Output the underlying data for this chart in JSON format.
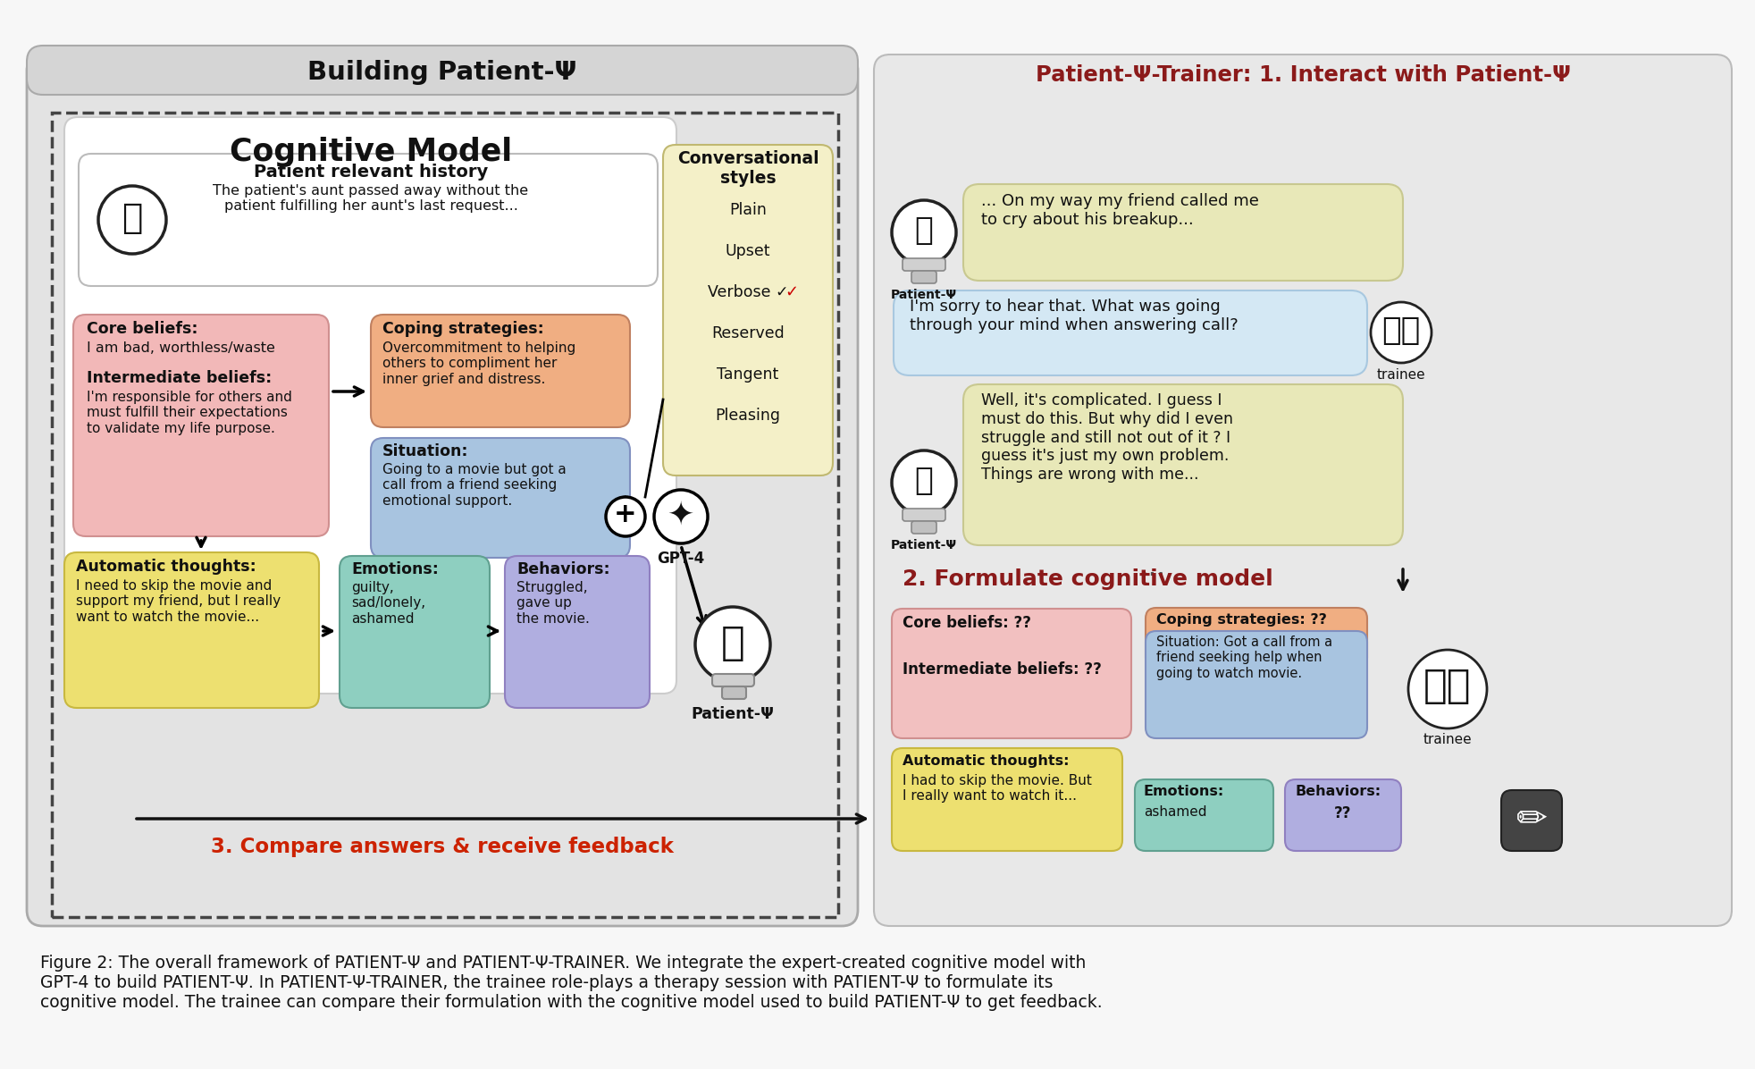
{
  "bg": "#f7f7f7",
  "left_panel_fc": "#e3e3e3",
  "right_panel_fc": "#e8e8e8",
  "left_title": "Building Patient-Ψ",
  "right_title": "Patient-Ψ-Trainer: 1. Interact with Patient-Ψ",
  "cog_model_title": "Cognitive Model",
  "hist_title": "Patient relevant history",
  "hist_body": "The patient's aunt passed away without the\npatient fulfilling her aunt's last request...",
  "core_title": "Core beliefs:",
  "core_body": "I am bad, worthless/waste",
  "inter_title": "Intermediate beliefs:",
  "inter_body": "I'm responsible for others and\nmust fulfill their expectations\nto validate my life purpose.",
  "coping_title": "Coping strategies:",
  "coping_body": "Overcommitment to helping\nothers to compliment her\ninner grief and distress.",
  "sit_title": "Situation:",
  "sit_body": "Going to a movie but got a\ncall from a friend seeking\nemotional support.",
  "at_title": "Automatic thoughts:",
  "at_body": "I need to skip the movie and\nsupport my friend, but I really\nwant to watch the movie...",
  "emo_title": "Emotions:",
  "emo_body": "guilty,\nsad/lonely,\nashamed",
  "beh_title": "Behaviors:",
  "beh_body": "Struggled,\ngave up\nthe movie.",
  "conv_title": "Conversational\nstyles",
  "conv_items": [
    "Plain",
    "Upset",
    "Verbose ✓",
    "Reserved",
    "Tangent",
    "Pleasing"
  ],
  "chat_p1": "... On my way my friend called me\nto cry about his breakup...",
  "chat_t1": "I'm sorry to hear that. What was going\nthrough your mind when answering call?",
  "chat_p2": "Well, it's complicated. I guess I\nmust do this. But why did I even\nstruggle and still not out of it ? I\nguess it's just my own problem.\nThings are wrong with me...",
  "s2_title": "2. Formulate cognitive model",
  "s3_text": "3. Compare answers & receive feedback",
  "t_core": "Core beliefs: ??",
  "t_inter": "Intermediate beliefs: ??",
  "t_coping": "Coping strategies: ??",
  "t_sit": "Situation: Got a call from a\nfriend seeking help when\ngoing to watch movie.",
  "t_at_title": "Automatic thoughts:",
  "t_at_body": "I had to skip the movie. But\nI really want to watch it...",
  "t_emo_title": "Emotions:",
  "t_emo_body": "ashamed",
  "t_beh_title": "Behaviors:",
  "t_beh_body": "??",
  "caption": "Figure 2: The overall framework of PATIENT-Ψ and PATIENT-Ψ-TRAINER. We integrate the expert-created cognitive model with\nGPT-4 to build PATIENT-Ψ. In PATIENT-Ψ-TRAINER, the trainee role-plays a therapy session with PATIENT-Ψ to formulate its\ncognitive model. The trainee can compare their formulation with the cognitive model used to build PATIENT-Ψ to get feedback.",
  "pink": "#f2b8b8",
  "orange": "#f0ae82",
  "blue_l": "#a8c4e0",
  "yellow": "#ede070",
  "teal": "#8ecfc0",
  "lavender": "#b0aee0",
  "chat_yw": "#e8e8b8",
  "chat_bl": "#d4e8f4",
  "conv_yw": "#f4f0c8",
  "red_t": "#8b1a1a",
  "white": "#ffffff",
  "dark": "#111111"
}
